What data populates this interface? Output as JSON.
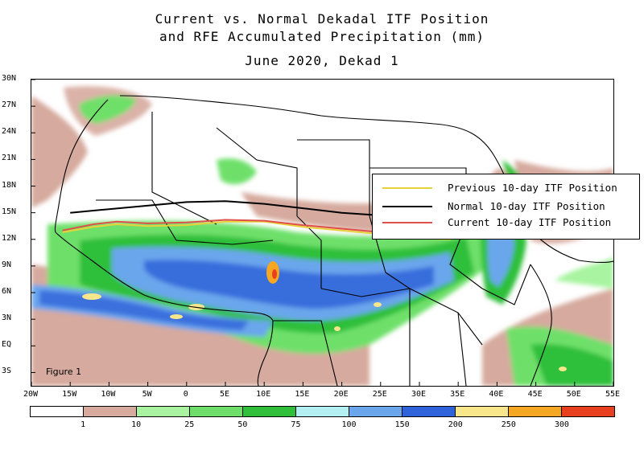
{
  "title": {
    "line1": "Current vs. Normal Dekadal ITF Position",
    "line2": "and RFE Accumulated Precipitation (mm)",
    "line3": "June 2020, Dekad 1"
  },
  "axes": {
    "lat_ticks": [
      "30N",
      "27N",
      "24N",
      "21N",
      "18N",
      "15N",
      "12N",
      "9N",
      "6N",
      "3N",
      "EQ",
      "3S"
    ],
    "lon_ticks": [
      "20W",
      "15W",
      "10W",
      "5W",
      "0",
      "5E",
      "10E",
      "15E",
      "20E",
      "25E",
      "30E",
      "35E",
      "40E",
      "45E",
      "50E",
      "55E"
    ]
  },
  "legend": {
    "items": [
      {
        "label": "Previous 10-day ITF Position",
        "color": "#e8d23a"
      },
      {
        "label": "Normal 10-day ITF Position",
        "color": "#000000"
      },
      {
        "label": "Current 10-day ITF Position",
        "color": "#e0504a"
      }
    ]
  },
  "figure_label": "Figure 1",
  "colorbar": {
    "colors": [
      "#ffffff",
      "#d6aa9e",
      "#a8f4a0",
      "#6ee06a",
      "#2fbf3a",
      "#b2f0f4",
      "#6aa6ec",
      "#2f63d9",
      "#f8e68c",
      "#f5a623",
      "#e8401e"
    ],
    "labels": [
      "1",
      "10",
      "25",
      "50",
      "75",
      "100",
      "150",
      "200",
      "250",
      "300"
    ]
  },
  "itf_lines": {
    "normal": [
      [
        -15,
        15.0
      ],
      [
        -10,
        15.4
      ],
      [
        0,
        16.2
      ],
      [
        5,
        16.3
      ],
      [
        10,
        16.0
      ],
      [
        15,
        15.5
      ],
      [
        20,
        15.0
      ],
      [
        25,
        14.7
      ],
      [
        30,
        14.4
      ],
      [
        35,
        14.2
      ]
    ],
    "current": [
      [
        -16,
        13.0
      ],
      [
        -12,
        13.7
      ],
      [
        -9,
        14.0
      ],
      [
        -5,
        13.8
      ],
      [
        0,
        13.9
      ],
      [
        5,
        14.2
      ],
      [
        10,
        14.1
      ],
      [
        15,
        13.6
      ],
      [
        20,
        13.2
      ],
      [
        25,
        12.8
      ],
      [
        30,
        12.4
      ],
      [
        34,
        12.2
      ]
    ],
    "previous": [
      [
        -16,
        12.8
      ],
      [
        -12,
        13.4
      ],
      [
        -9,
        13.7
      ],
      [
        -5,
        13.5
      ],
      [
        0,
        13.6
      ],
      [
        5,
        14.0
      ],
      [
        10,
        14.0
      ],
      [
        15,
        13.4
      ],
      [
        20,
        13.0
      ],
      [
        25,
        12.6
      ],
      [
        30,
        12.1
      ],
      [
        34,
        12.0
      ]
    ]
  }
}
